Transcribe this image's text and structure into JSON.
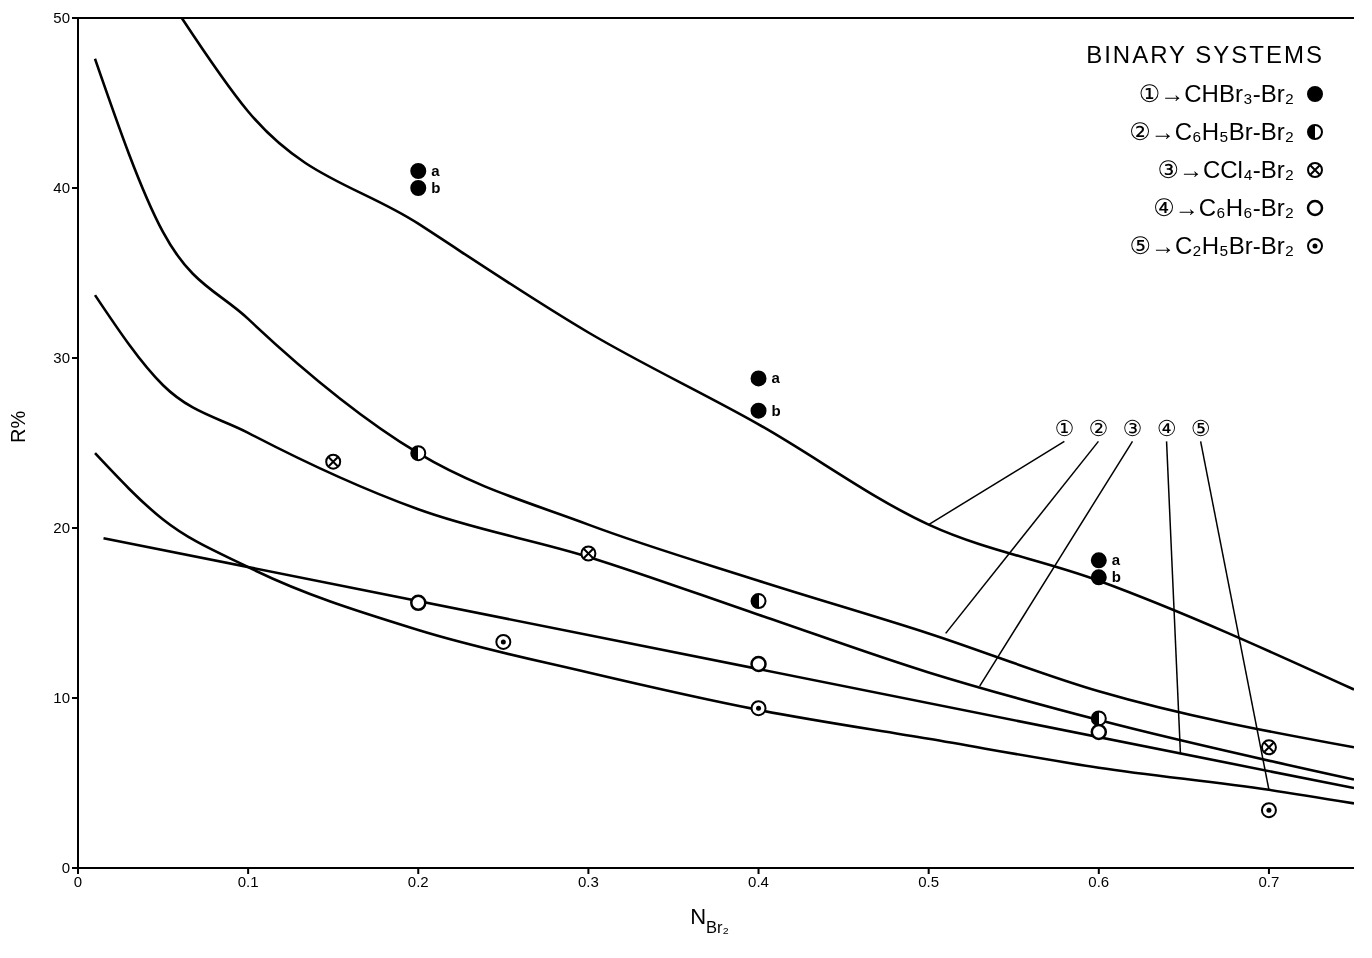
{
  "chart_data": {
    "type": "scatter",
    "xlabel": "N$_{Br₂}$",
    "ylabel": "R%",
    "xlim": [
      0,
      0.75
    ],
    "ylim": [
      0,
      50
    ],
    "xticks": [
      0,
      0.1,
      0.2,
      0.3,
      0.4,
      0.5,
      0.6,
      0.7
    ],
    "yticks": [
      0,
      10,
      20,
      30,
      40,
      50
    ],
    "legend": "top right",
    "series": [
      {
        "type": "line",
        "color": "#000000",
        "x": [
          0.061,
          0.1,
          0.2,
          0.3,
          0.4,
          0.5,
          0.6,
          0.75
        ],
        "values": [
          50,
          44.5,
          37.9,
          31.5,
          26.1,
          20.2,
          16.9,
          10.5
        ]
      },
      {
        "type": "line",
        "color": "#000000",
        "x": [
          0.01,
          0.05,
          0.1,
          0.2,
          0.3,
          0.4,
          0.5,
          0.6,
          0.75
        ],
        "values": [
          47.6,
          37.4,
          32.3,
          24.4,
          20.2,
          16.9,
          13.8,
          10.4,
          7.1
        ]
      },
      {
        "type": "line",
        "color": "#000000",
        "x": [
          0.01,
          0.05,
          0.1,
          0.2,
          0.3,
          0.4,
          0.5,
          0.6,
          0.75
        ],
        "values": [
          33.7,
          28.4,
          25.6,
          21.1,
          18.3,
          14.9,
          11.5,
          8.7,
          5.2
        ]
      },
      {
        "type": "line",
        "color": "#000000",
        "x": [
          0.015,
          0.75
        ],
        "values": [
          19.4,
          4.7
        ]
      },
      {
        "type": "line",
        "color": "#000000",
        "x": [
          0.01,
          0.05,
          0.1,
          0.2,
          0.3,
          0.4,
          0.5,
          0.6,
          0.7,
          0.75
        ],
        "values": [
          24.4,
          20.5,
          17.7,
          14.0,
          11.5,
          9.3,
          7.6,
          5.9,
          4.6,
          3.8
        ]
      },
      {
        "name": "①→CHBr₃-Br₂",
        "color": "#000000",
        "marker": "circle",
        "x": [
          0.2,
          0.2,
          0.4,
          0.4,
          0.6,
          0.6
        ],
        "values": [
          41.0,
          40.0,
          28.8,
          26.9,
          18.1,
          17.1
        ]
      },
      {
        "name": "②→C₆H₅Br-Br₂",
        "color": "#000000",
        "marker": "circle",
        "x": [
          0.2,
          0.4,
          0.6
        ],
        "values": [
          24.4,
          15.7,
          8.8
        ]
      },
      {
        "name": "③→CCl₄-Br₂",
        "color": "#000000",
        "marker": "circle",
        "x": [
          0.15,
          0.3,
          0.7
        ],
        "values": [
          23.9,
          18.5,
          7.1
        ]
      },
      {
        "name": "④→C₆H₆-Br₂",
        "color": "#000000",
        "marker": "circle",
        "x": [
          0.2,
          0.4,
          0.6
        ],
        "values": [
          15.6,
          12.0,
          8.0
        ]
      },
      {
        "name": "⑤→C₂H₅Br-Br₂",
        "color": "#000000",
        "marker": "circle",
        "x": [
          0.25,
          0.4,
          0.7
        ],
        "values": [
          13.3,
          9.4,
          3.4
        ]
      }
    ],
    "annotations": [
      "BINARY SYSTEMS",
      {
        "text": "a",
        "x": 0.2,
        "y": 41.0
      },
      {
        "text": "b",
        "x": 0.2,
        "y": 40.0
      },
      {
        "text": "a",
        "x": 0.4,
        "y": 28.8
      },
      {
        "text": "b",
        "x": 0.4,
        "y": 26.9
      },
      {
        "text": "a",
        "x": 0.6,
        "y": 18.1
      },
      {
        "text": "b",
        "x": 0.6,
        "y": 17.1
      },
      {
        "text": "①",
        "x": 0.5,
        "y": 20.2
      },
      {
        "text": "②",
        "x": 0.51,
        "y": 13.8
      },
      {
        "text": "③",
        "x": 0.53,
        "y": 10.7
      },
      {
        "text": "④",
        "x": 0.648,
        "y": 6.7
      },
      {
        "text": "⑤",
        "x": 0.7,
        "y": 4.6
      }
    ]
  }
}
